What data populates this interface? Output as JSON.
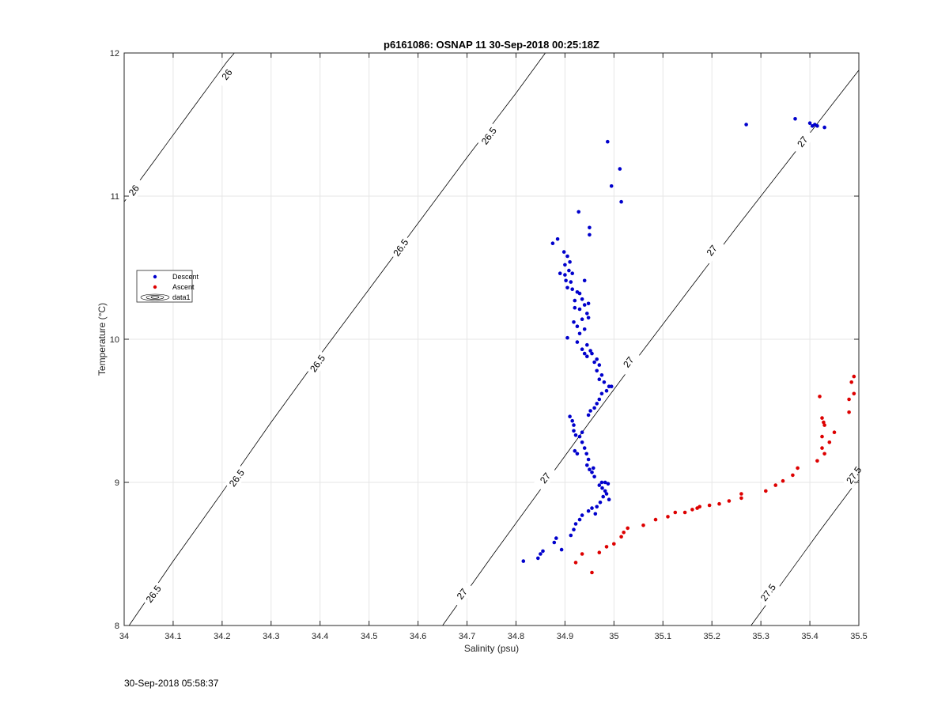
{
  "footer_timestamp": "30-Sep-2018 05:58:37",
  "chart_data": {
    "type": "scatter",
    "title": "p6161086: OSNAP 11 30-Sep-2018 00:25:18Z",
    "xlabel": "Salinity (psu)",
    "ylabel": "Temperature (°C)",
    "xlim": [
      34,
      35.5
    ],
    "ylim": [
      8,
      12
    ],
    "x_ticks": [
      "34",
      "34.1",
      "34.2",
      "34.3",
      "34.4",
      "34.5",
      "34.6",
      "34.7",
      "34.8",
      "34.9",
      "35",
      "35.1",
      "35.2",
      "35.3",
      "35.4",
      "35.5"
    ],
    "y_ticks": [
      "8",
      "9",
      "10",
      "11",
      "12"
    ],
    "grid": true,
    "legend": {
      "placement": "left",
      "entries": [
        "Descent",
        "Ascent",
        "data1"
      ]
    },
    "colors": {
      "descent": "#0000cc",
      "ascent": "#dd0000",
      "contour": "#000000"
    },
    "series": [
      {
        "name": "Descent",
        "points": [
          [
            34.815,
            8.45
          ],
          [
            34.845,
            8.47
          ],
          [
            34.85,
            8.5
          ],
          [
            34.855,
            8.52
          ],
          [
            34.878,
            8.58
          ],
          [
            34.882,
            8.61
          ],
          [
            34.893,
            8.53
          ],
          [
            34.912,
            8.63
          ],
          [
            34.918,
            8.67
          ],
          [
            34.922,
            8.71
          ],
          [
            34.93,
            8.74
          ],
          [
            34.935,
            8.77
          ],
          [
            34.948,
            8.8
          ],
          [
            34.955,
            8.82
          ],
          [
            34.962,
            8.78
          ],
          [
            34.965,
            8.83
          ],
          [
            34.972,
            8.86
          ],
          [
            34.978,
            8.9
          ],
          [
            34.985,
            8.92
          ],
          [
            34.99,
            8.88
          ],
          [
            34.982,
            8.94
          ],
          [
            34.976,
            8.96
          ],
          [
            34.97,
            8.98
          ],
          [
            34.975,
            9.0
          ],
          [
            34.982,
            9.0
          ],
          [
            34.988,
            8.99
          ],
          [
            34.96,
            9.04
          ],
          [
            34.955,
            9.07
          ],
          [
            34.95,
            9.09
          ],
          [
            34.958,
            9.1
          ],
          [
            34.945,
            9.12
          ],
          [
            34.948,
            9.16
          ],
          [
            34.944,
            9.2
          ],
          [
            34.94,
            9.24
          ],
          [
            34.925,
            9.2
          ],
          [
            34.92,
            9.22
          ],
          [
            34.935,
            9.28
          ],
          [
            34.93,
            9.32
          ],
          [
            34.922,
            9.33
          ],
          [
            34.918,
            9.36
          ],
          [
            34.935,
            9.35
          ],
          [
            34.918,
            9.4
          ],
          [
            34.915,
            9.43
          ],
          [
            34.91,
            9.46
          ],
          [
            34.948,
            9.47
          ],
          [
            34.952,
            9.5
          ],
          [
            34.96,
            9.52
          ],
          [
            34.965,
            9.55
          ],
          [
            34.97,
            9.58
          ],
          [
            34.975,
            9.62
          ],
          [
            34.985,
            9.64
          ],
          [
            34.99,
            9.67
          ],
          [
            34.995,
            9.67
          ],
          [
            34.98,
            9.7
          ],
          [
            34.97,
            9.72
          ],
          [
            34.975,
            9.75
          ],
          [
            34.965,
            9.78
          ],
          [
            34.97,
            9.82
          ],
          [
            34.96,
            9.84
          ],
          [
            34.965,
            9.86
          ],
          [
            34.955,
            9.9
          ],
          [
            34.94,
            9.9
          ],
          [
            34.945,
            9.88
          ],
          [
            34.935,
            9.93
          ],
          [
            34.952,
            9.92
          ],
          [
            34.945,
            9.96
          ],
          [
            34.925,
            9.98
          ],
          [
            34.905,
            10.01
          ],
          [
            34.93,
            10.04
          ],
          [
            34.94,
            10.07
          ],
          [
            34.925,
            10.09
          ],
          [
            34.918,
            10.12
          ],
          [
            34.935,
            10.14
          ],
          [
            34.948,
            10.15
          ],
          [
            34.945,
            10.18
          ],
          [
            34.93,
            10.21
          ],
          [
            34.92,
            10.22
          ],
          [
            34.94,
            10.24
          ],
          [
            34.935,
            10.28
          ],
          [
            34.92,
            10.27
          ],
          [
            34.948,
            10.25
          ],
          [
            34.93,
            10.32
          ],
          [
            34.925,
            10.33
          ],
          [
            34.915,
            10.35
          ],
          [
            34.905,
            10.36
          ],
          [
            34.912,
            10.4
          ],
          [
            34.94,
            10.41
          ],
          [
            34.902,
            10.41
          ],
          [
            34.9,
            10.45
          ],
          [
            34.915,
            10.46
          ],
          [
            34.89,
            10.46
          ],
          [
            34.908,
            10.48
          ],
          [
            34.9,
            10.52
          ],
          [
            34.91,
            10.54
          ],
          [
            34.905,
            10.58
          ],
          [
            34.898,
            10.61
          ],
          [
            34.885,
            10.7
          ],
          [
            34.875,
            10.67
          ],
          [
            34.95,
            10.73
          ],
          [
            34.95,
            10.78
          ],
          [
            34.928,
            10.89
          ],
          [
            35.015,
            10.96
          ],
          [
            34.995,
            11.07
          ],
          [
            35.012,
            11.19
          ],
          [
            34.987,
            11.38
          ],
          [
            35.27,
            11.5
          ],
          [
            35.37,
            11.54
          ],
          [
            35.4,
            11.51
          ],
          [
            35.405,
            11.49
          ],
          [
            35.41,
            11.5
          ],
          [
            35.415,
            11.49
          ],
          [
            35.43,
            11.48
          ]
        ]
      },
      {
        "name": "Ascent",
        "points": [
          [
            34.922,
            8.44
          ],
          [
            34.935,
            8.5
          ],
          [
            34.955,
            8.37
          ],
          [
            34.97,
            8.51
          ],
          [
            34.985,
            8.55
          ],
          [
            35.0,
            8.57
          ],
          [
            35.015,
            8.62
          ],
          [
            35.02,
            8.65
          ],
          [
            35.028,
            8.68
          ],
          [
            35.06,
            8.7
          ],
          [
            35.085,
            8.74
          ],
          [
            35.11,
            8.76
          ],
          [
            35.125,
            8.79
          ],
          [
            35.145,
            8.79
          ],
          [
            35.16,
            8.81
          ],
          [
            35.17,
            8.82
          ],
          [
            35.175,
            8.83
          ],
          [
            35.195,
            8.84
          ],
          [
            35.215,
            8.85
          ],
          [
            35.235,
            8.87
          ],
          [
            35.26,
            8.89
          ],
          [
            35.26,
            8.92
          ],
          [
            35.31,
            8.94
          ],
          [
            35.33,
            8.98
          ],
          [
            35.345,
            9.01
          ],
          [
            35.365,
            9.05
          ],
          [
            35.375,
            9.1
          ],
          [
            35.415,
            9.15
          ],
          [
            35.43,
            9.2
          ],
          [
            35.425,
            9.24
          ],
          [
            35.44,
            9.28
          ],
          [
            35.45,
            9.35
          ],
          [
            35.425,
            9.32
          ],
          [
            35.43,
            9.4
          ],
          [
            35.428,
            9.42
          ],
          [
            35.425,
            9.45
          ],
          [
            35.42,
            9.6
          ],
          [
            35.48,
            9.49
          ],
          [
            35.48,
            9.58
          ],
          [
            35.49,
            9.62
          ],
          [
            35.485,
            9.7
          ],
          [
            35.49,
            9.74
          ]
        ]
      }
    ],
    "contours": [
      {
        "name": "sigma-26",
        "labels": [
          "26",
          "26"
        ],
        "points": [
          [
            34.0,
            10.96
          ],
          [
            34.03,
            11.1
          ],
          [
            34.06,
            11.24
          ],
          [
            34.09,
            11.38
          ],
          [
            34.12,
            11.52
          ],
          [
            34.15,
            11.66
          ],
          [
            34.18,
            11.8
          ],
          [
            34.21,
            11.94
          ],
          [
            34.225,
            12.0
          ]
        ],
        "label_pos": [
          [
            34.02,
            11.04
          ],
          [
            34.21,
            11.85
          ]
        ]
      },
      {
        "name": "sigma-26.5",
        "labels": [
          "26.5",
          "26.5",
          "26.5",
          "26.5",
          "26.5"
        ],
        "points": [
          [
            34.01,
            8.0
          ],
          [
            34.1,
            8.45
          ],
          [
            34.2,
            8.93
          ],
          [
            34.3,
            9.42
          ],
          [
            34.4,
            9.89
          ],
          [
            34.5,
            10.35
          ],
          [
            34.6,
            10.81
          ],
          [
            34.7,
            11.27
          ],
          [
            34.8,
            11.72
          ],
          [
            34.86,
            12.0
          ]
        ],
        "label_pos": [
          [
            34.06,
            8.22
          ],
          [
            34.23,
            9.03
          ],
          [
            34.395,
            9.83
          ],
          [
            34.565,
            10.64
          ],
          [
            34.745,
            11.42
          ]
        ]
      },
      {
        "name": "sigma-27",
        "labels": [
          "27",
          "27",
          "27",
          "27",
          "27"
        ],
        "points": [
          [
            34.65,
            8.0
          ],
          [
            34.75,
            8.48
          ],
          [
            34.85,
            8.95
          ],
          [
            34.95,
            9.42
          ],
          [
            35.05,
            9.88
          ],
          [
            35.15,
            10.33
          ],
          [
            35.25,
            10.78
          ],
          [
            35.35,
            11.22
          ],
          [
            35.45,
            11.66
          ],
          [
            35.5,
            11.88
          ]
        ],
        "label_pos": [
          [
            34.69,
            8.22
          ],
          [
            34.86,
            9.03
          ],
          [
            35.03,
            9.84
          ],
          [
            35.2,
            10.62
          ],
          [
            35.385,
            11.38
          ]
        ]
      },
      {
        "name": "sigma-27.5",
        "labels": [
          "27.5",
          "27.5"
        ],
        "points": [
          [
            35.28,
            8.0
          ],
          [
            35.35,
            8.33
          ],
          [
            35.42,
            8.66
          ],
          [
            35.49,
            8.98
          ],
          [
            35.5,
            9.02
          ]
        ],
        "label_pos": [
          [
            35.315,
            8.23
          ],
          [
            35.49,
            9.05
          ]
        ]
      }
    ]
  }
}
